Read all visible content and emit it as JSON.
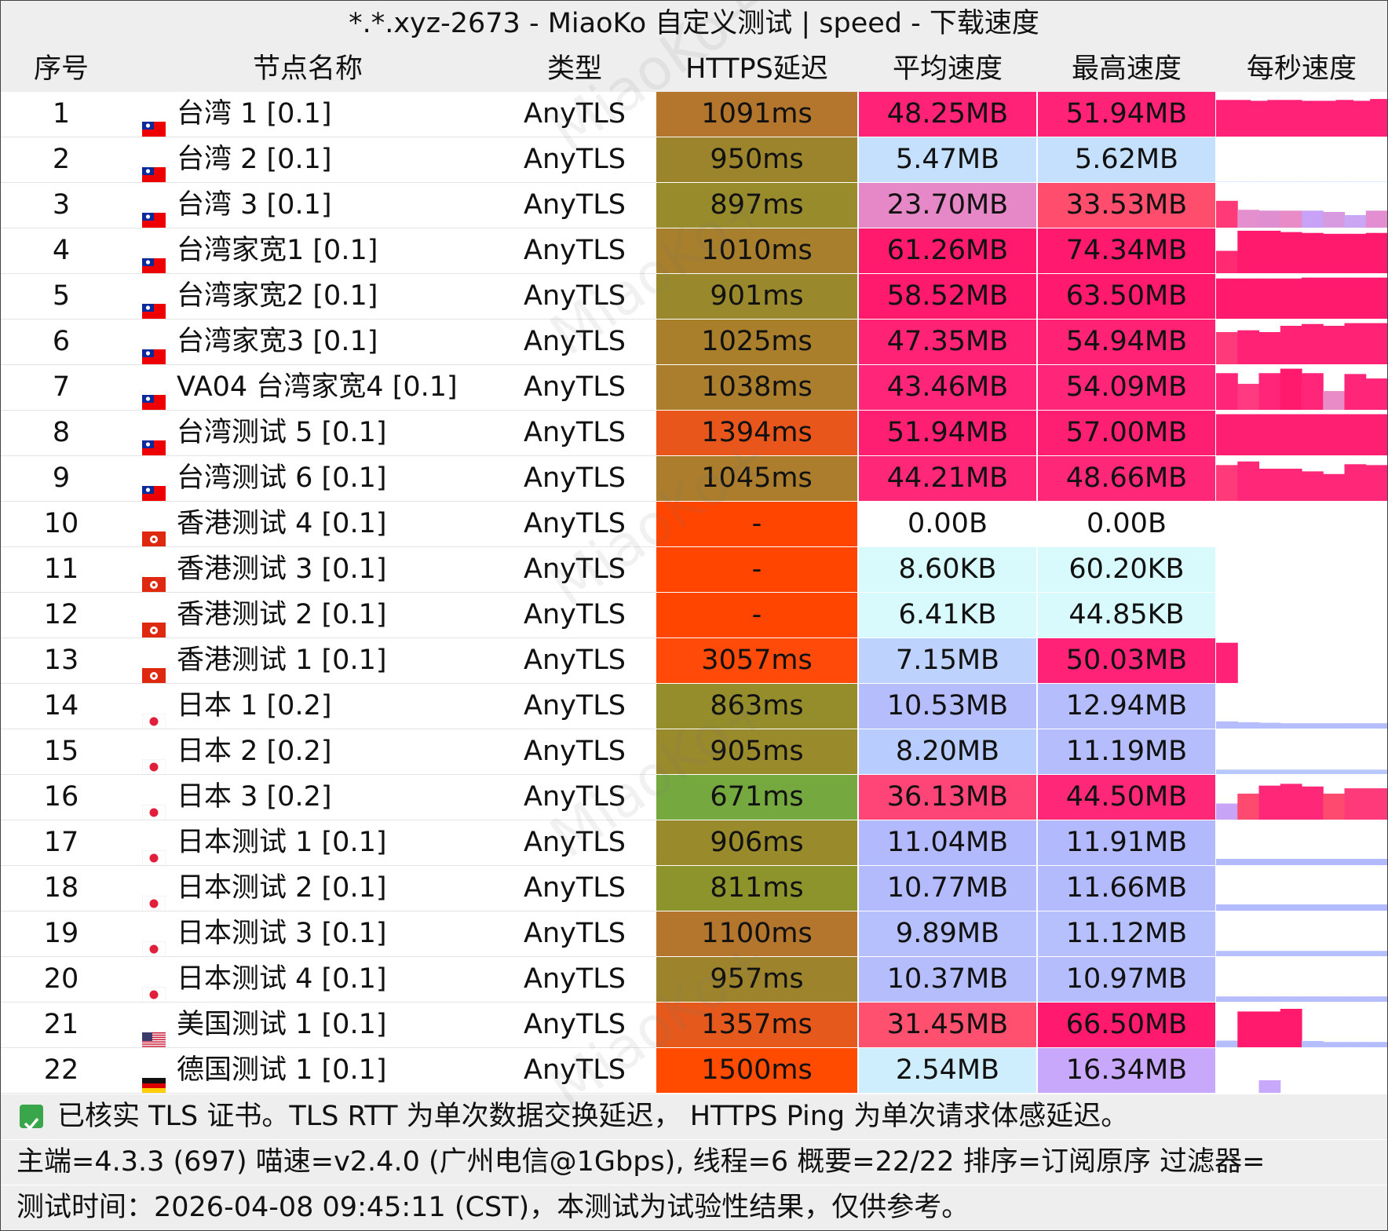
{
  "title": "*.*.xyz-2673 - MiaoKo 自定义测试 | speed - 下载速度",
  "headers": {
    "idx": "序号",
    "name": "节点名称",
    "type": "类型",
    "latency": "HTTPS延迟",
    "avg": "平均速度",
    "max": "最高速度",
    "per_sec": "每秒速度"
  },
  "colors": {
    "header_bg": "#eeeeee",
    "latency_bad": "#ff4500",
    "pink_high": "#ff1a6b",
    "blue_low": "#b9b9ff",
    "light_cyan": "#d6f8fd",
    "light_blue": "#c2e0fe"
  },
  "rows": [
    {
      "idx": "1",
      "flag": "taiwan-flag",
      "name": "台湾 1 [0.1]",
      "type": "AnyTLS",
      "latency": "1091ms",
      "lat_color": "#b4752c",
      "avg": "48.25MB",
      "avg_color": "#ff2277",
      "max": "51.94MB",
      "max_color": "#ff2277",
      "spark": [
        0.82,
        0.82,
        0.8,
        0.82,
        0.82,
        0.8,
        0.8,
        0.82,
        0.8,
        0.84
      ],
      "spark_colors": [
        "#ff2277"
      ]
    },
    {
      "idx": "2",
      "flag": "taiwan-flag",
      "name": "台湾 2 [0.1]",
      "type": "AnyTLS",
      "latency": "950ms",
      "lat_color": "#9c842c",
      "avg": "5.47MB",
      "avg_color": "#c5e0fd",
      "max": "5.62MB",
      "max_color": "#c5e0fd",
      "spark": [
        0.01,
        0.01,
        0.01,
        0.01,
        0.01,
        0.01,
        0.01,
        0.01
      ],
      "spark_colors": [
        "#c5e0fd"
      ]
    },
    {
      "idx": "3",
      "flag": "taiwan-flag",
      "name": "台湾 3 [0.1]",
      "type": "AnyTLS",
      "latency": "897ms",
      "lat_color": "#988b2c",
      "avg": "23.70MB",
      "avg_color": "#e687c8",
      "max": "33.53MB",
      "max_color": "#ff4d6e",
      "spark": [
        0.6,
        0.4,
        0.38,
        0.38,
        0.38,
        0.35,
        0.28,
        0.38
      ],
      "spark_colors": [
        "#ff3a78",
        "#e590ce",
        "#df8fd0",
        "#e88bc6",
        "#c8a2f6",
        "#d79ae0",
        "#caa6f5",
        "#e28ed0"
      ]
    },
    {
      "idx": "4",
      "flag": "taiwan-flag",
      "name": "台湾家宽1 [0.1]",
      "type": "AnyTLS",
      "latency": "1010ms",
      "lat_color": "#a87f2c",
      "avg": "61.26MB",
      "avg_color": "#ff1a6e",
      "max": "74.34MB",
      "max_color": "#ff1a6e",
      "spark": [
        0.5,
        0.95,
        0.95,
        0.92,
        0.9,
        0.88,
        0.88,
        0.9
      ],
      "spark_colors": [
        "#ff2a72",
        "#ff1a6e"
      ]
    },
    {
      "idx": "5",
      "flag": "taiwan-flag",
      "name": "台湾家宽2 [0.1]",
      "type": "AnyTLS",
      "latency": "901ms",
      "lat_color": "#9a892c",
      "avg": "58.52MB",
      "avg_color": "#ff1a6e",
      "max": "63.50MB",
      "max_color": "#ff1a6e",
      "spark": [
        0.9,
        0.9,
        0.9,
        0.9,
        0.92,
        0.92,
        0.92,
        0.92
      ],
      "spark_colors": [
        "#ff1a6e"
      ]
    },
    {
      "idx": "6",
      "flag": "taiwan-flag",
      "name": "台湾家宽3 [0.1]",
      "type": "AnyTLS",
      "latency": "1025ms",
      "lat_color": "#a97f2c",
      "avg": "47.35MB",
      "avg_color": "#ff2275",
      "max": "54.94MB",
      "max_color": "#ff2275",
      "spark": [
        0.72,
        0.76,
        0.72,
        0.86,
        0.9,
        0.86,
        0.92,
        0.92
      ],
      "spark_colors": [
        "#ff3a7a",
        "#ff2275"
      ]
    },
    {
      "idx": "7",
      "flag": "taiwan-flag",
      "name": "VA04 台湾家宽4 [0.1]",
      "type": "AnyTLS",
      "latency": "1038ms",
      "lat_color": "#aa7e2c",
      "avg": "43.46MB",
      "avg_color": "#ff2679",
      "max": "54.09MB",
      "max_color": "#ff2679",
      "spark": [
        0.82,
        0.58,
        0.82,
        0.92,
        0.82,
        0.42,
        0.8,
        0.7
      ],
      "spark_colors": [
        "#ff2679",
        "#ff3a80",
        "#ff2679",
        "#ff1a6e",
        "#ff2679",
        "#e88bc6",
        "#ff2679",
        "#ff2679"
      ]
    },
    {
      "idx": "8",
      "flag": "taiwan-flag",
      "name": "台湾测试 5 [0.1]",
      "type": "AnyTLS",
      "latency": "1394ms",
      "lat_color": "#e8561c",
      "avg": "51.94MB",
      "avg_color": "#ff1f72",
      "max": "57.00MB",
      "max_color": "#ff1f72",
      "spark": [
        0.92,
        0.92,
        0.92,
        0.92,
        0.92,
        0.92,
        0.92,
        0.92
      ],
      "spark_colors": [
        "#ff1f72"
      ]
    },
    {
      "idx": "9",
      "flag": "taiwan-flag",
      "name": "台湾测试 6 [0.1]",
      "type": "AnyTLS",
      "latency": "1045ms",
      "lat_color": "#ab7d2c",
      "avg": "44.21MB",
      "avg_color": "#ff2878",
      "max": "48.66MB",
      "max_color": "#ff2878",
      "spark": [
        0.8,
        0.88,
        0.72,
        0.72,
        0.66,
        0.6,
        0.82,
        0.8
      ],
      "spark_colors": [
        "#ff3a7a",
        "#ff2878"
      ]
    },
    {
      "idx": "10",
      "flag": "hongkong-flag",
      "name": "香港测试 4 [0.1]",
      "type": "AnyTLS",
      "latency": "-",
      "lat_color": "#ff4500",
      "avg": "0.00B",
      "avg_color": "#ffffff",
      "max": "0.00B",
      "max_color": "#ffffff",
      "spark": [],
      "spark_colors": [
        "#ffffff"
      ]
    },
    {
      "idx": "11",
      "flag": "hongkong-flag",
      "name": "香港测试 3 [0.1]",
      "type": "AnyTLS",
      "latency": "-",
      "lat_color": "#ff4500",
      "avg": "8.60KB",
      "avg_color": "#d8fafd",
      "max": "60.20KB",
      "max_color": "#d8fafd",
      "spark": [],
      "spark_colors": [
        "#ffffff"
      ]
    },
    {
      "idx": "12",
      "flag": "hongkong-flag",
      "name": "香港测试 2 [0.1]",
      "type": "AnyTLS",
      "latency": "-",
      "lat_color": "#ff4500",
      "avg": "6.41KB",
      "avg_color": "#d8fafd",
      "max": "44.85KB",
      "max_color": "#d8fafd",
      "spark": [],
      "spark_colors": [
        "#ffffff"
      ]
    },
    {
      "idx": "13",
      "flag": "hongkong-flag",
      "name": "香港测试 1 [0.1]",
      "type": "AnyTLS",
      "latency": "3057ms",
      "lat_color": "#ff4a0a",
      "avg": "7.15MB",
      "avg_color": "#bdd2fd",
      "max": "50.03MB",
      "max_color": "#ff2277",
      "spark": [
        0.9
      ],
      "spark_colors": [
        "#ff2277"
      ]
    },
    {
      "idx": "14",
      "flag": "japan-flag",
      "name": "日本 1 [0.2]",
      "type": "AnyTLS",
      "latency": "863ms",
      "lat_color": "#958d2c",
      "avg": "10.53MB",
      "avg_color": "#b5bdfd",
      "max": "12.94MB",
      "max_color": "#b5bdfd",
      "spark": [
        0.16,
        0.14,
        0.13,
        0.12,
        0.12,
        0.12,
        0.12,
        0.12
      ],
      "spark_colors": [
        "#b5bdfd"
      ]
    },
    {
      "idx": "15",
      "flag": "japan-flag",
      "name": "日本 2 [0.2]",
      "type": "AnyTLS",
      "latency": "905ms",
      "lat_color": "#998a2c",
      "avg": "8.20MB",
      "avg_color": "#b8ccfd",
      "max": "11.19MB",
      "max_color": "#b5bdfd",
      "spark": [
        0.1,
        0.1,
        0.1,
        0.1,
        0.1,
        0.1,
        0.1,
        0.1
      ],
      "spark_colors": [
        "#b8c8fd"
      ]
    },
    {
      "idx": "16",
      "flag": "japan-flag",
      "name": "日本 3 [0.2]",
      "type": "AnyTLS",
      "latency": "671ms",
      "lat_color": "#75a83f",
      "avg": "36.13MB",
      "avg_color": "#ff4477",
      "max": "44.50MB",
      "max_color": "#ff2878",
      "spark": [
        0.36,
        0.58,
        0.76,
        0.8,
        0.74,
        0.58,
        0.7,
        0.7
      ],
      "spark_colors": [
        "#c9a3f6",
        "#ff4a6f",
        "#ff2878",
        "#ff2878",
        "#ff2878",
        "#ff4a6f",
        "#ff3a7a",
        "#ff3a7a"
      ]
    },
    {
      "idx": "17",
      "flag": "japan-flag",
      "name": "日本测试 1 [0.1]",
      "type": "AnyTLS",
      "latency": "906ms",
      "lat_color": "#998a2c",
      "avg": "11.04MB",
      "avg_color": "#b3b9fd",
      "max": "11.91MB",
      "max_color": "#b3b9fd",
      "spark": [
        0.14,
        0.14,
        0.14,
        0.14,
        0.14,
        0.14,
        0.14,
        0.14
      ],
      "spark_colors": [
        "#b3b9fd"
      ]
    },
    {
      "idx": "18",
      "flag": "japan-flag",
      "name": "日本测试 2 [0.1]",
      "type": "AnyTLS",
      "latency": "811ms",
      "lat_color": "#8e942c",
      "avg": "10.77MB",
      "avg_color": "#b4bbfd",
      "max": "11.66MB",
      "max_color": "#b4bbfd",
      "spark": [
        0.14,
        0.14,
        0.14,
        0.14,
        0.14,
        0.14,
        0.14,
        0.14
      ],
      "spark_colors": [
        "#b4bbfd"
      ]
    },
    {
      "idx": "19",
      "flag": "japan-flag",
      "name": "日本测试 3 [0.1]",
      "type": "AnyTLS",
      "latency": "1100ms",
      "lat_color": "#b4752c",
      "avg": "9.89MB",
      "avg_color": "#b6c0fd",
      "max": "11.12MB",
      "max_color": "#b6c0fd",
      "spark": [
        0.12,
        0.12,
        0.12,
        0.12,
        0.12,
        0.12,
        0.12,
        0.12
      ],
      "spark_colors": [
        "#b6c0fd"
      ]
    },
    {
      "idx": "20",
      "flag": "japan-flag",
      "name": "日本测试 4 [0.1]",
      "type": "AnyTLS",
      "latency": "957ms",
      "lat_color": "#9d842c",
      "avg": "10.37MB",
      "avg_color": "#b5bdfd",
      "max": "10.97MB",
      "max_color": "#b5bdfd",
      "spark": [
        0.12,
        0.12,
        0.12,
        0.12,
        0.12,
        0.12,
        0.12,
        0.12
      ],
      "spark_colors": [
        "#b5bdfd"
      ]
    },
    {
      "idx": "21",
      "flag": "usa-flag",
      "name": "美国测试 1 [0.1]",
      "type": "AnyTLS",
      "latency": "1357ms",
      "lat_color": "#e55a1c",
      "avg": "31.45MB",
      "avg_color": "#ff5070",
      "max": "66.50MB",
      "max_color": "#ff1a6e",
      "spark": [
        0.15,
        0.8,
        0.8,
        0.86,
        0.14,
        0.12,
        0.12,
        0.12
      ],
      "spark_colors": [
        "#b5bdfd",
        "#ff1a6e",
        "#ff1a6e",
        "#ff1a6e",
        "#b5bdfd",
        "#b5bdfd",
        "#b5bdfd",
        "#b5bdfd"
      ]
    },
    {
      "idx": "22",
      "flag": "germany-flag",
      "name": "德国测试 1 [0.1]",
      "type": "AnyTLS",
      "latency": "1500ms",
      "lat_color": "#ff4b00",
      "avg": "2.54MB",
      "avg_color": "#cfeefd",
      "max": "16.34MB",
      "max_color": "#c8a8fb",
      "spark": [
        0,
        0,
        0.28,
        0,
        0,
        0,
        0,
        0
      ],
      "spark_colors": [
        "#c8a8fb"
      ]
    }
  ],
  "footer": {
    "line1": "已核实 TLS 证书。TLS RTT 为单次数据交换延迟， HTTPS Ping 为单次请求体感延迟。",
    "line2": "主端=4.3.3 (697) 喵速=v2.4.0 (广州电信@1Gbps), 线程=6 概要=22/22 排序=订阅原序 过滤器=",
    "line3": "测试时间：2026-04-08 09:45:11 (CST)，本测试为试验性结果，仅供参考。"
  },
  "watermark": "MiaoKo+"
}
